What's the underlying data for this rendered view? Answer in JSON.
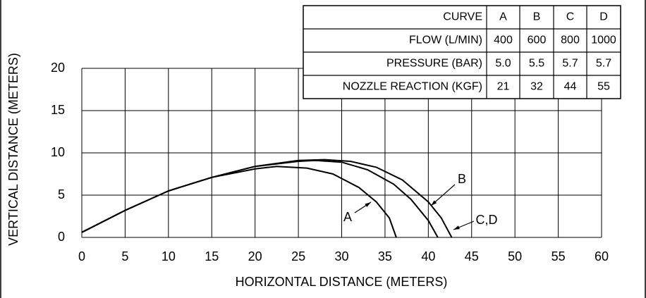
{
  "chart_data": {
    "type": "line",
    "xlabel": "HORIZONTAL DISTANCE (METERS)",
    "ylabel": "VERTICAL DISTANCE (METERS)",
    "xlim": [
      0,
      60
    ],
    "xticks": [
      0,
      5,
      10,
      15,
      20,
      25,
      30,
      35,
      40,
      45,
      50,
      55,
      60
    ],
    "ylim": [
      0,
      20
    ],
    "yticks": [
      0,
      5,
      10,
      15,
      20
    ],
    "grid": true,
    "series": [
      {
        "name": "A",
        "color": "#000000",
        "x": [
          0,
          5,
          10,
          15,
          20,
          22.5,
          26,
          29,
          32,
          34,
          35.5,
          36.3
        ],
        "values": [
          0.6,
          3.2,
          5.5,
          7.1,
          8.1,
          8.4,
          8.2,
          7.5,
          5.9,
          4.2,
          2.3,
          0
        ]
      },
      {
        "name": "B",
        "color": "#000000",
        "x": [
          0,
          5,
          10,
          15,
          20,
          25,
          27,
          30,
          33,
          36,
          38,
          40,
          41.1
        ],
        "values": [
          0.6,
          3.2,
          5.5,
          7.1,
          8.4,
          9.0,
          9.1,
          8.9,
          8.0,
          6.3,
          4.5,
          2.0,
          0
        ]
      },
      {
        "name": "C,D",
        "color": "#000000",
        "x": [
          0,
          5,
          10,
          15,
          20,
          25,
          28,
          31,
          34,
          37,
          40,
          41.5,
          42.7
        ],
        "values": [
          0.6,
          3.2,
          5.5,
          7.1,
          8.4,
          9.1,
          9.2,
          9.0,
          8.3,
          6.8,
          4.2,
          2.3,
          0
        ]
      }
    ],
    "annotations": [
      "A",
      "B",
      "C,D"
    ],
    "table": {
      "rows": [
        [
          "CURVE",
          "A",
          "B",
          "C",
          "D"
        ],
        [
          "FLOW (L/MIN)",
          "400",
          "600",
          "800",
          "1000"
        ],
        [
          "PRESSURE (BAR)",
          "5.0",
          "5.5",
          "5.7",
          "5.7"
        ],
        [
          "NOZZLE REACTION (KGF)",
          "21",
          "32",
          "44",
          "55"
        ]
      ]
    }
  }
}
